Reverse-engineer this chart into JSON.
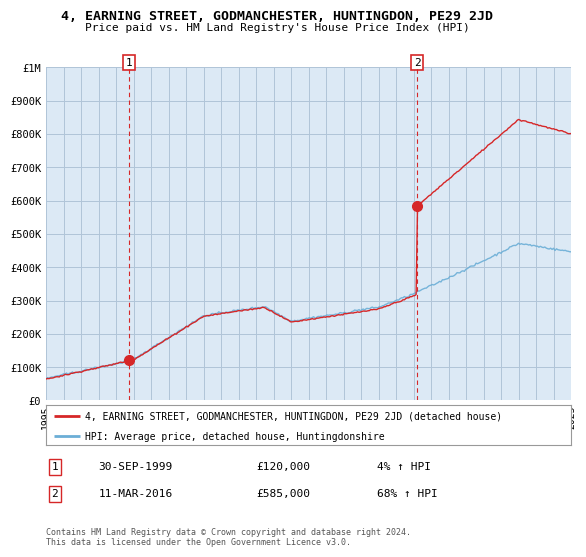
{
  "title": "4, EARNING STREET, GODMANCHESTER, HUNTINGDON, PE29 2JD",
  "subtitle": "Price paid vs. HM Land Registry's House Price Index (HPI)",
  "ylabel_max": 1000000,
  "yticks": [
    0,
    100000,
    200000,
    300000,
    400000,
    500000,
    600000,
    700000,
    800000,
    900000,
    1000000
  ],
  "ytick_labels": [
    "£0",
    "£100K",
    "£200K",
    "£300K",
    "£400K",
    "£500K",
    "£600K",
    "£700K",
    "£800K",
    "£900K",
    "£1M"
  ],
  "xmin": 1995,
  "xmax": 2025,
  "legend_line1": "4, EARNING STREET, GODMANCHESTER, HUNTINGDON, PE29 2JD (detached house)",
  "legend_line2": "HPI: Average price, detached house, Huntingdonshire",
  "sale1_x": 1999.75,
  "sale1_y": 120000,
  "sale2_x": 2016.2,
  "sale2_y": 585000,
  "sale1_date": "30-SEP-1999",
  "sale1_price": "£120,000",
  "sale1_hpi": "4% ↑ HPI",
  "sale2_date": "11-MAR-2016",
  "sale2_price": "£585,000",
  "sale2_hpi": "68% ↑ HPI",
  "hpi_color": "#6baed6",
  "price_color": "#d62728",
  "vline_color": "#d62728",
  "background_color": "#ffffff",
  "chart_bg_color": "#dce9f5",
  "grid_color": "#b0c4d8",
  "footnote": "Contains HM Land Registry data © Crown copyright and database right 2024.\nThis data is licensed under the Open Government Licence v3.0."
}
